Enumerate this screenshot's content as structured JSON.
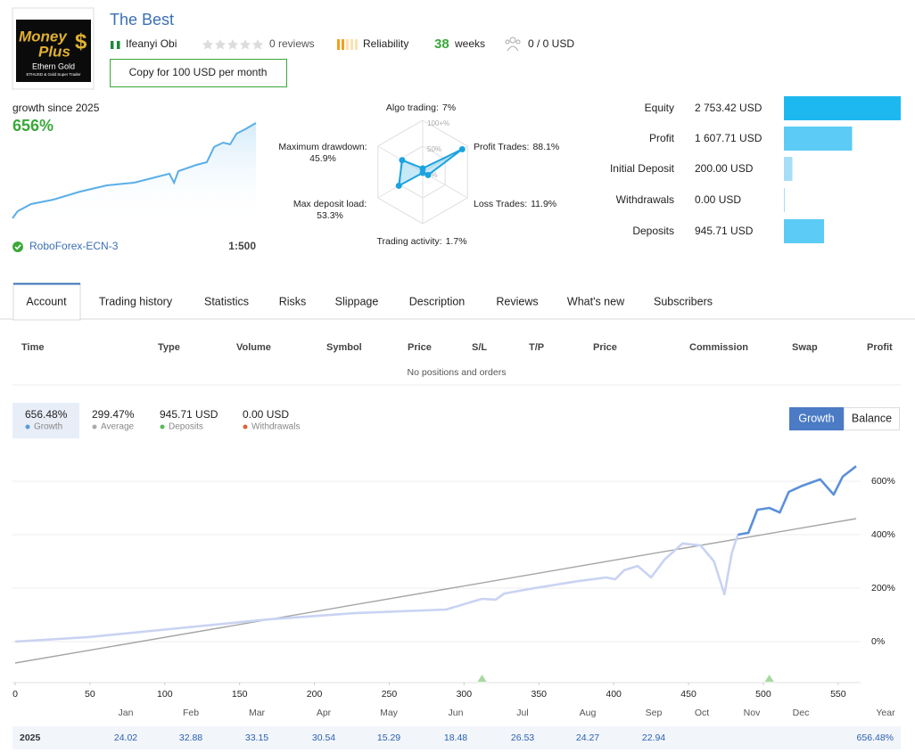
{
  "header": {
    "logo": {
      "line1": "Money",
      "line2": "Plus",
      "symbol": "$",
      "line3": "Ethern Gold",
      "line4": "ETHUSD & Gold Super Trader"
    },
    "title": "The Best",
    "author": "Ifeanyi Obi",
    "reviews": "0 reviews",
    "reliability": "Reliability",
    "weeks_value": 38,
    "weeks_label": "weeks",
    "subscribers": "0 / 0 USD",
    "copy_button": "Copy for 100 USD per month"
  },
  "growth_card": {
    "label": "growth since 2025",
    "value": "656%",
    "broker": "RoboForex-ECN-3",
    "leverage": "1:500",
    "chart": {
      "type": "area",
      "color": "#5aaee8",
      "x": [
        0,
        12,
        43,
        95,
        157,
        219,
        282,
        323,
        364,
        375,
        385,
        427,
        451,
        468,
        489,
        505,
        520,
        540,
        565
      ],
      "values": [
        0,
        49,
        98,
        129,
        184,
        227,
        245,
        276,
        307,
        245,
        325,
        368,
        386,
        491,
        521,
        509,
        583,
        613,
        656
      ]
    }
  },
  "radar": {
    "type": "radar",
    "color": "#1aa3e0",
    "ring_ticks": [
      {
        "value": 0,
        "label": "0%"
      },
      {
        "value": 50,
        "label": "50%"
      },
      {
        "value": 100,
        "label": "100+%"
      }
    ],
    "axes": [
      {
        "name": "Algo trading:",
        "value": 7,
        "value_label": "7%"
      },
      {
        "name": "Profit Trades:",
        "value": 88.1,
        "value_label": "88.1%"
      },
      {
        "name": "Loss Trades:",
        "value": 11.9,
        "value_label": "11.9%"
      },
      {
        "name": "Trading activity:",
        "value": 1.7,
        "value_label": "1.7%"
      },
      {
        "name": "Max deposit load:",
        "value": 53.3,
        "value_label": "53.3%"
      },
      {
        "name": "Maximum drawdown:",
        "value": 45.9,
        "value_label": "45.9%"
      }
    ]
  },
  "balance_bars": {
    "type": "bar",
    "categories": [
      "Equity",
      "Profit",
      "Initial Deposit",
      "Withdrawals",
      "Deposits"
    ],
    "values": [
      2753.42,
      1607.71,
      200,
      0,
      945.71
    ],
    "value_labels": [
      "2 753.42 USD",
      "1 607.71 USD",
      "200.00 USD",
      "0.00 USD",
      "945.71 USD"
    ],
    "colors": [
      "#1eb8f0",
      "#5ccbf5",
      "#a7def7",
      "#a7def7",
      "#5ccbf5"
    ]
  },
  "tabs": [
    "Account",
    "Trading history",
    "Statistics",
    "Risks",
    "Slippage",
    "Description",
    "Reviews",
    "What's new",
    "Subscribers"
  ],
  "positions": {
    "columns": [
      "Time",
      "Type",
      "Volume",
      "Symbol",
      "Price",
      "S/L",
      "T/P",
      "Price",
      "Commission",
      "Swap",
      "Profit"
    ],
    "empty": "No positions and orders"
  },
  "summary": [
    {
      "value": "656.48%",
      "label": "Growth",
      "color": "#5b9bd5"
    },
    {
      "value": "299.47%",
      "label": "Average",
      "color": "#aaaaaa"
    },
    {
      "value": "945.71 USD",
      "label": "Deposits",
      "color": "#5cb85c"
    },
    {
      "value": "0.00 USD",
      "label": "Withdrawals",
      "color": "#e0603a"
    }
  ],
  "toggle": [
    "Growth",
    "Balance"
  ],
  "growth_chart": {
    "type": "line",
    "xlim": [
      0,
      565
    ],
    "ylim": [
      -150,
      700
    ],
    "xticks": [
      0,
      50,
      100,
      150,
      200,
      250,
      300,
      350,
      400,
      450,
      500,
      550
    ],
    "yticks": [
      {
        "value": 0,
        "label": "0%"
      },
      {
        "value": 200,
        "label": "200%"
      },
      {
        "value": 400,
        "label": "400%"
      },
      {
        "value": 600,
        "label": "600%"
      }
    ],
    "grid": true,
    "series": [
      {
        "color": "#c9d3f2",
        "x": [
          0,
          49,
          109,
          169,
          228,
          288,
          312,
          321,
          327,
          347,
          377,
          395,
          401,
          407,
          416,
          425,
          434,
          446,
          458,
          467,
          474,
          479,
          483
        ],
        "values": [
          0,
          17,
          50,
          83,
          107,
          120,
          160,
          157,
          180,
          200,
          227,
          240,
          233,
          267,
          283,
          240,
          307,
          367,
          360,
          300,
          177,
          333,
          400
        ]
      },
      {
        "color": "#5b8fd9",
        "x": [
          483,
          490,
          496,
          504,
          511,
          517,
          526,
          538,
          547,
          553,
          562
        ],
        "values": [
          400,
          407,
          493,
          500,
          483,
          560,
          583,
          607,
          550,
          617,
          656
        ]
      },
      {
        "color": "#a5a5a5",
        "x": [
          0,
          562
        ],
        "values": [
          -80,
          460
        ]
      }
    ],
    "deposit_markers_x": [
      312,
      504
    ]
  },
  "monthly": {
    "months": [
      "Jan",
      "Feb",
      "Mar",
      "Apr",
      "May",
      "Jun",
      "Jul",
      "Aug",
      "Sep",
      "Oct",
      "Nov",
      "Dec"
    ],
    "total_header": "Year",
    "rows": [
      {
        "year": 2025,
        "values": [
          24.02,
          32.88,
          33.15,
          30.54,
          15.29,
          18.48,
          26.53,
          24.27,
          22.94,
          null,
          null,
          null
        ],
        "total": "656.48%"
      }
    ]
  }
}
